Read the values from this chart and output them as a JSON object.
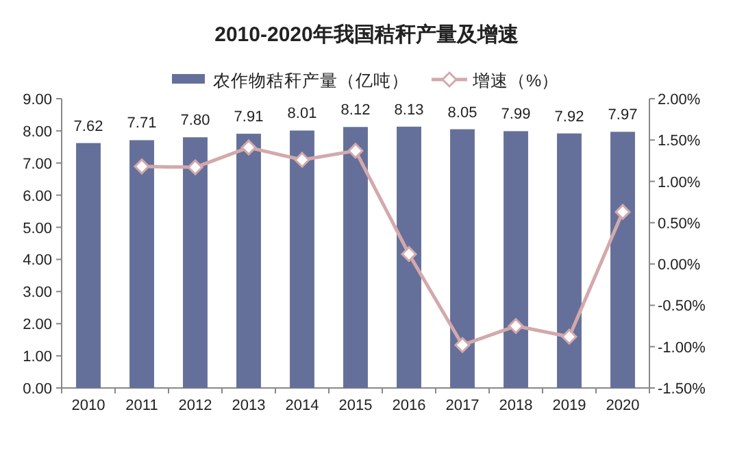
{
  "chart_data": {
    "type": "bar",
    "title": "2010-2020年我国秸秆产量及增速",
    "categories": [
      "2010",
      "2011",
      "2012",
      "2013",
      "2014",
      "2015",
      "2016",
      "2017",
      "2018",
      "2019",
      "2020"
    ],
    "series": [
      {
        "name": "农作物秸秆产量（亿吨）",
        "color": "#65709a",
        "values": [
          7.62,
          7.71,
          7.8,
          7.91,
          8.01,
          8.12,
          8.13,
          8.05,
          7.99,
          7.92,
          7.97
        ],
        "value_labels": [
          "7.62",
          "7.71",
          "7.80",
          "7.91",
          "8.01",
          "8.12",
          "8.13",
          "8.05",
          "7.99",
          "7.92",
          "7.97"
        ]
      },
      {
        "name": "增速（%）",
        "type": "line",
        "axis": "y2",
        "color": "#d3a9ab",
        "marker": "diamond",
        "values": [
          null,
          1.18,
          1.17,
          1.41,
          1.26,
          1.37,
          0.12,
          -0.98,
          -0.75,
          -0.88,
          0.63
        ]
      }
    ],
    "ylim": [
      0,
      9
    ],
    "yticks": [
      {
        "value": 0,
        "label": "0.00"
      },
      {
        "value": 1,
        "label": "1.00"
      },
      {
        "value": 2,
        "label": "2.00"
      },
      {
        "value": 3,
        "label": "3.00"
      },
      {
        "value": 4,
        "label": "4.00"
      },
      {
        "value": 5,
        "label": "5.00"
      },
      {
        "value": 6,
        "label": "6.00"
      },
      {
        "value": 7,
        "label": "7.00"
      },
      {
        "value": 8,
        "label": "8.00"
      },
      {
        "value": 9,
        "label": "9.00"
      }
    ],
    "y2lim": [
      -1.5,
      2
    ],
    "y2ticks": [
      {
        "value": -1.5,
        "label": "-1.50%"
      },
      {
        "value": -1,
        "label": "-1.00%"
      },
      {
        "value": -0.5,
        "label": "-0.50%"
      },
      {
        "value": 0,
        "label": "0.00%"
      },
      {
        "value": 0.5,
        "label": "0.50%"
      },
      {
        "value": 1,
        "label": "1.00%"
      },
      {
        "value": 1.5,
        "label": "1.50%"
      },
      {
        "value": 2,
        "label": "2.00%"
      }
    ],
    "legend": "top",
    "grid": false
  }
}
